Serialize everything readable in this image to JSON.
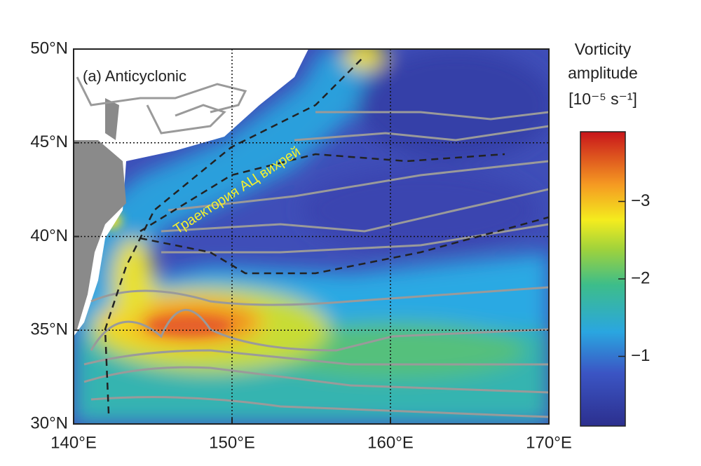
{
  "map": {
    "title": "(a) Anticyclonic",
    "annotation": "Траектория АЦ вихрей",
    "xlim": [
      140,
      170
    ],
    "xticks": [
      {
        "value": 140,
        "label": "140°E"
      },
      {
        "value": 150,
        "label": "150°E"
      },
      {
        "value": 160,
        "label": "160°E"
      },
      {
        "value": 170,
        "label": "170°E"
      }
    ],
    "ylim": [
      30,
      50
    ],
    "yticks": [
      {
        "value": 30,
        "label": "30°N"
      },
      {
        "value": 35,
        "label": "35°N"
      },
      {
        "value": 40,
        "label": "40°N"
      },
      {
        "value": 45,
        "label": "45°N"
      },
      {
        "value": 50,
        "label": "50°N"
      }
    ],
    "colorbar": {
      "title": [
        "Vorticity",
        "amplitude",
        "[10⁻⁵ s⁻¹]"
      ],
      "lim": [
        -0.1,
        -3.9
      ],
      "ticks": [
        {
          "value": -1,
          "label": "−1"
        },
        {
          "value": -2,
          "label": "−2"
        },
        {
          "value": -3,
          "label": "−3"
        }
      ]
    }
  }
}
